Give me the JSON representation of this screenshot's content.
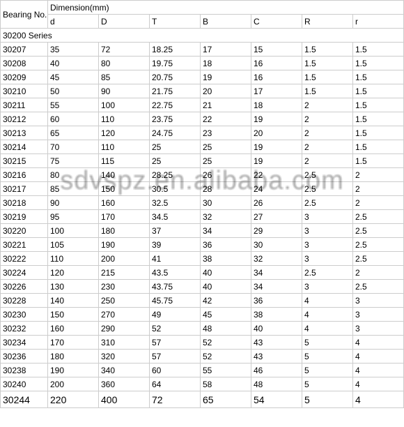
{
  "watermark": "sdvspz.en.alibaba.com",
  "headers": {
    "bearing": "Bearing No.",
    "dimension": "Dimension(mm)",
    "cols": [
      "d",
      "D",
      "T",
      "B",
      "C",
      "R",
      "r"
    ]
  },
  "series_label": "30200 Series",
  "rows": [
    {
      "b": "30207",
      "d": "35",
      "D": "72",
      "T": "18.25",
      "B": "17",
      "C": "15",
      "R": "1.5",
      "r": "1.5"
    },
    {
      "b": "30208",
      "d": "40",
      "D": "80",
      "T": "19.75",
      "B": "18",
      "C": "16",
      "R": "1.5",
      "r": "1.5"
    },
    {
      "b": "30209",
      "d": "45",
      "D": "85",
      "T": "20.75",
      "B": "19",
      "C": "16",
      "R": "1.5",
      "r": "1.5"
    },
    {
      "b": "30210",
      "d": "50",
      "D": "90",
      "T": "21.75",
      "B": "20",
      "C": "17",
      "R": "1.5",
      "r": "1.5"
    },
    {
      "b": "30211",
      "d": "55",
      "D": "100",
      "T": "22.75",
      "B": "21",
      "C": "18",
      "R": "2",
      "r": "1.5"
    },
    {
      "b": "30212",
      "d": "60",
      "D": "110",
      "T": "23.75",
      "B": "22",
      "C": "19",
      "R": "2",
      "r": "1.5"
    },
    {
      "b": "30213",
      "d": "65",
      "D": "120",
      "T": "24.75",
      "B": "23",
      "C": "20",
      "R": "2",
      "r": "1.5"
    },
    {
      "b": "30214",
      "d": "70",
      "D": "110",
      "T": "25",
      "B": "25",
      "C": "19",
      "R": "2",
      "r": "1.5"
    },
    {
      "b": "30215",
      "d": "75",
      "D": "115",
      "T": "25",
      "B": "25",
      "C": "19",
      "R": "2",
      "r": "1.5"
    },
    {
      "b": "30216",
      "d": "80",
      "D": "140",
      "T": "28.25",
      "B": "26",
      "C": "22",
      "R": "2.5",
      "r": "2"
    },
    {
      "b": "30217",
      "d": "85",
      "D": "150",
      "T": "30.5",
      "B": "28",
      "C": "24",
      "R": "2.5",
      "r": "2"
    },
    {
      "b": "30218",
      "d": "90",
      "D": "160",
      "T": "32.5",
      "B": "30",
      "C": "26",
      "R": "2.5",
      "r": "2"
    },
    {
      "b": "30219",
      "d": "95",
      "D": "170",
      "T": "34.5",
      "B": "32",
      "C": "27",
      "R": "3",
      "r": "2.5"
    },
    {
      "b": "30220",
      "d": "100",
      "D": "180",
      "T": "37",
      "B": "34",
      "C": "29",
      "R": "3",
      "r": "2.5"
    },
    {
      "b": "30221",
      "d": "105",
      "D": "190",
      "T": "39",
      "B": "36",
      "C": "30",
      "R": "3",
      "r": "2.5"
    },
    {
      "b": "30222",
      "d": "110",
      "D": "200",
      "T": "41",
      "B": "38",
      "C": "32",
      "R": "3",
      "r": "2.5"
    },
    {
      "b": "30224",
      "d": "120",
      "D": "215",
      "T": "43.5",
      "B": "40",
      "C": "34",
      "R": "2.5",
      "r": "2"
    },
    {
      "b": "30226",
      "d": "130",
      "D": "230",
      "T": "43.75",
      "B": "40",
      "C": "34",
      "R": "3",
      "r": "2.5"
    },
    {
      "b": "30228",
      "d": "140",
      "D": "250",
      "T": "45.75",
      "B": "42",
      "C": "36",
      "R": "4",
      "r": "3"
    },
    {
      "b": "30230",
      "d": "150",
      "D": "270",
      "T": "49",
      "B": "45",
      "C": "38",
      "R": "4",
      "r": "3"
    },
    {
      "b": "30232",
      "d": "160",
      "D": "290",
      "T": "52",
      "B": "48",
      "C": "40",
      "R": "4",
      "r": "3"
    },
    {
      "b": "30234",
      "d": "170",
      "D": "310",
      "T": "57",
      "B": "52",
      "C": "43",
      "R": "5",
      "r": "4"
    },
    {
      "b": "30236",
      "d": "180",
      "D": "320",
      "T": "57",
      "B": "52",
      "C": "43",
      "R": "5",
      "r": "4"
    },
    {
      "b": "30238",
      "d": "190",
      "D": "340",
      "T": "60",
      "B": "55",
      "C": "46",
      "R": "5",
      "r": "4"
    },
    {
      "b": "30240",
      "d": "200",
      "D": "360",
      "T": "64",
      "B": "58",
      "C": "48",
      "R": "5",
      "r": "4"
    },
    {
      "b": "30244",
      "d": "220",
      "D": "400",
      "T": "72",
      "B": "65",
      "C": "54",
      "R": "5",
      "r": "4",
      "last": true
    }
  ]
}
